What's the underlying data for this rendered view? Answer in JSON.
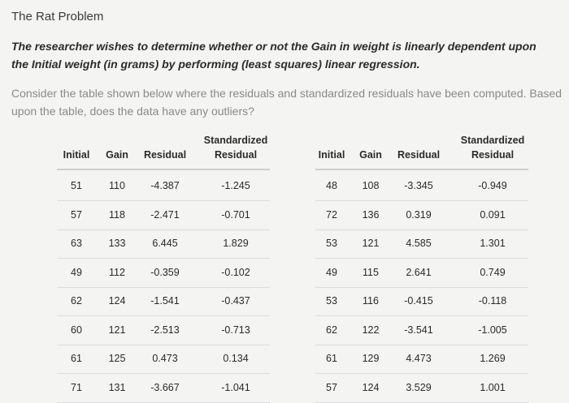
{
  "title": "The Rat Problem",
  "description": "The researcher wishes to determine whether or not the Gain in weight is linearly dependent upon the Initial weight (in grams) by performing (least squares) linear regression.",
  "question": "Consider the table shown below where the residuals and standardized residuals have been computed. Based upon the table, does the data have any outliers?",
  "headers": {
    "initial": "Initial",
    "gain": "Gain",
    "residual": "Residual",
    "std_line1": "Standardized",
    "std_line2": "Residual"
  },
  "left_rows": [
    {
      "initial": "51",
      "gain": "110",
      "residual": "-4.387",
      "std": "-1.245"
    },
    {
      "initial": "57",
      "gain": "118",
      "residual": "-2.471",
      "std": "-0.701"
    },
    {
      "initial": "63",
      "gain": "133",
      "residual": "6.445",
      "std": "1.829"
    },
    {
      "initial": "49",
      "gain": "112",
      "residual": "-0.359",
      "std": "-0.102"
    },
    {
      "initial": "62",
      "gain": "124",
      "residual": "-1.541",
      "std": "-0.437"
    },
    {
      "initial": "60",
      "gain": "121",
      "residual": "-2.513",
      "std": "-0.713"
    },
    {
      "initial": "61",
      "gain": "125",
      "residual": "0.473",
      "std": "0.134"
    },
    {
      "initial": "71",
      "gain": "131",
      "residual": "-3.667",
      "std": "-1.041"
    }
  ],
  "right_rows": [
    {
      "initial": "48",
      "gain": "108",
      "residual": "-3.345",
      "std": "-0.949"
    },
    {
      "initial": "72",
      "gain": "136",
      "residual": "0.319",
      "std": "0.091"
    },
    {
      "initial": "53",
      "gain": "121",
      "residual": "4.585",
      "std": "1.301"
    },
    {
      "initial": "49",
      "gain": "115",
      "residual": "2.641",
      "std": "0.749"
    },
    {
      "initial": "53",
      "gain": "116",
      "residual": "-0.415",
      "std": "-0.118"
    },
    {
      "initial": "62",
      "gain": "122",
      "residual": "-3.541",
      "std": "-1.005"
    },
    {
      "initial": "61",
      "gain": "129",
      "residual": "4.473",
      "std": "1.269"
    },
    {
      "initial": "57",
      "gain": "124",
      "residual": "3.529",
      "std": "1.001"
    }
  ]
}
